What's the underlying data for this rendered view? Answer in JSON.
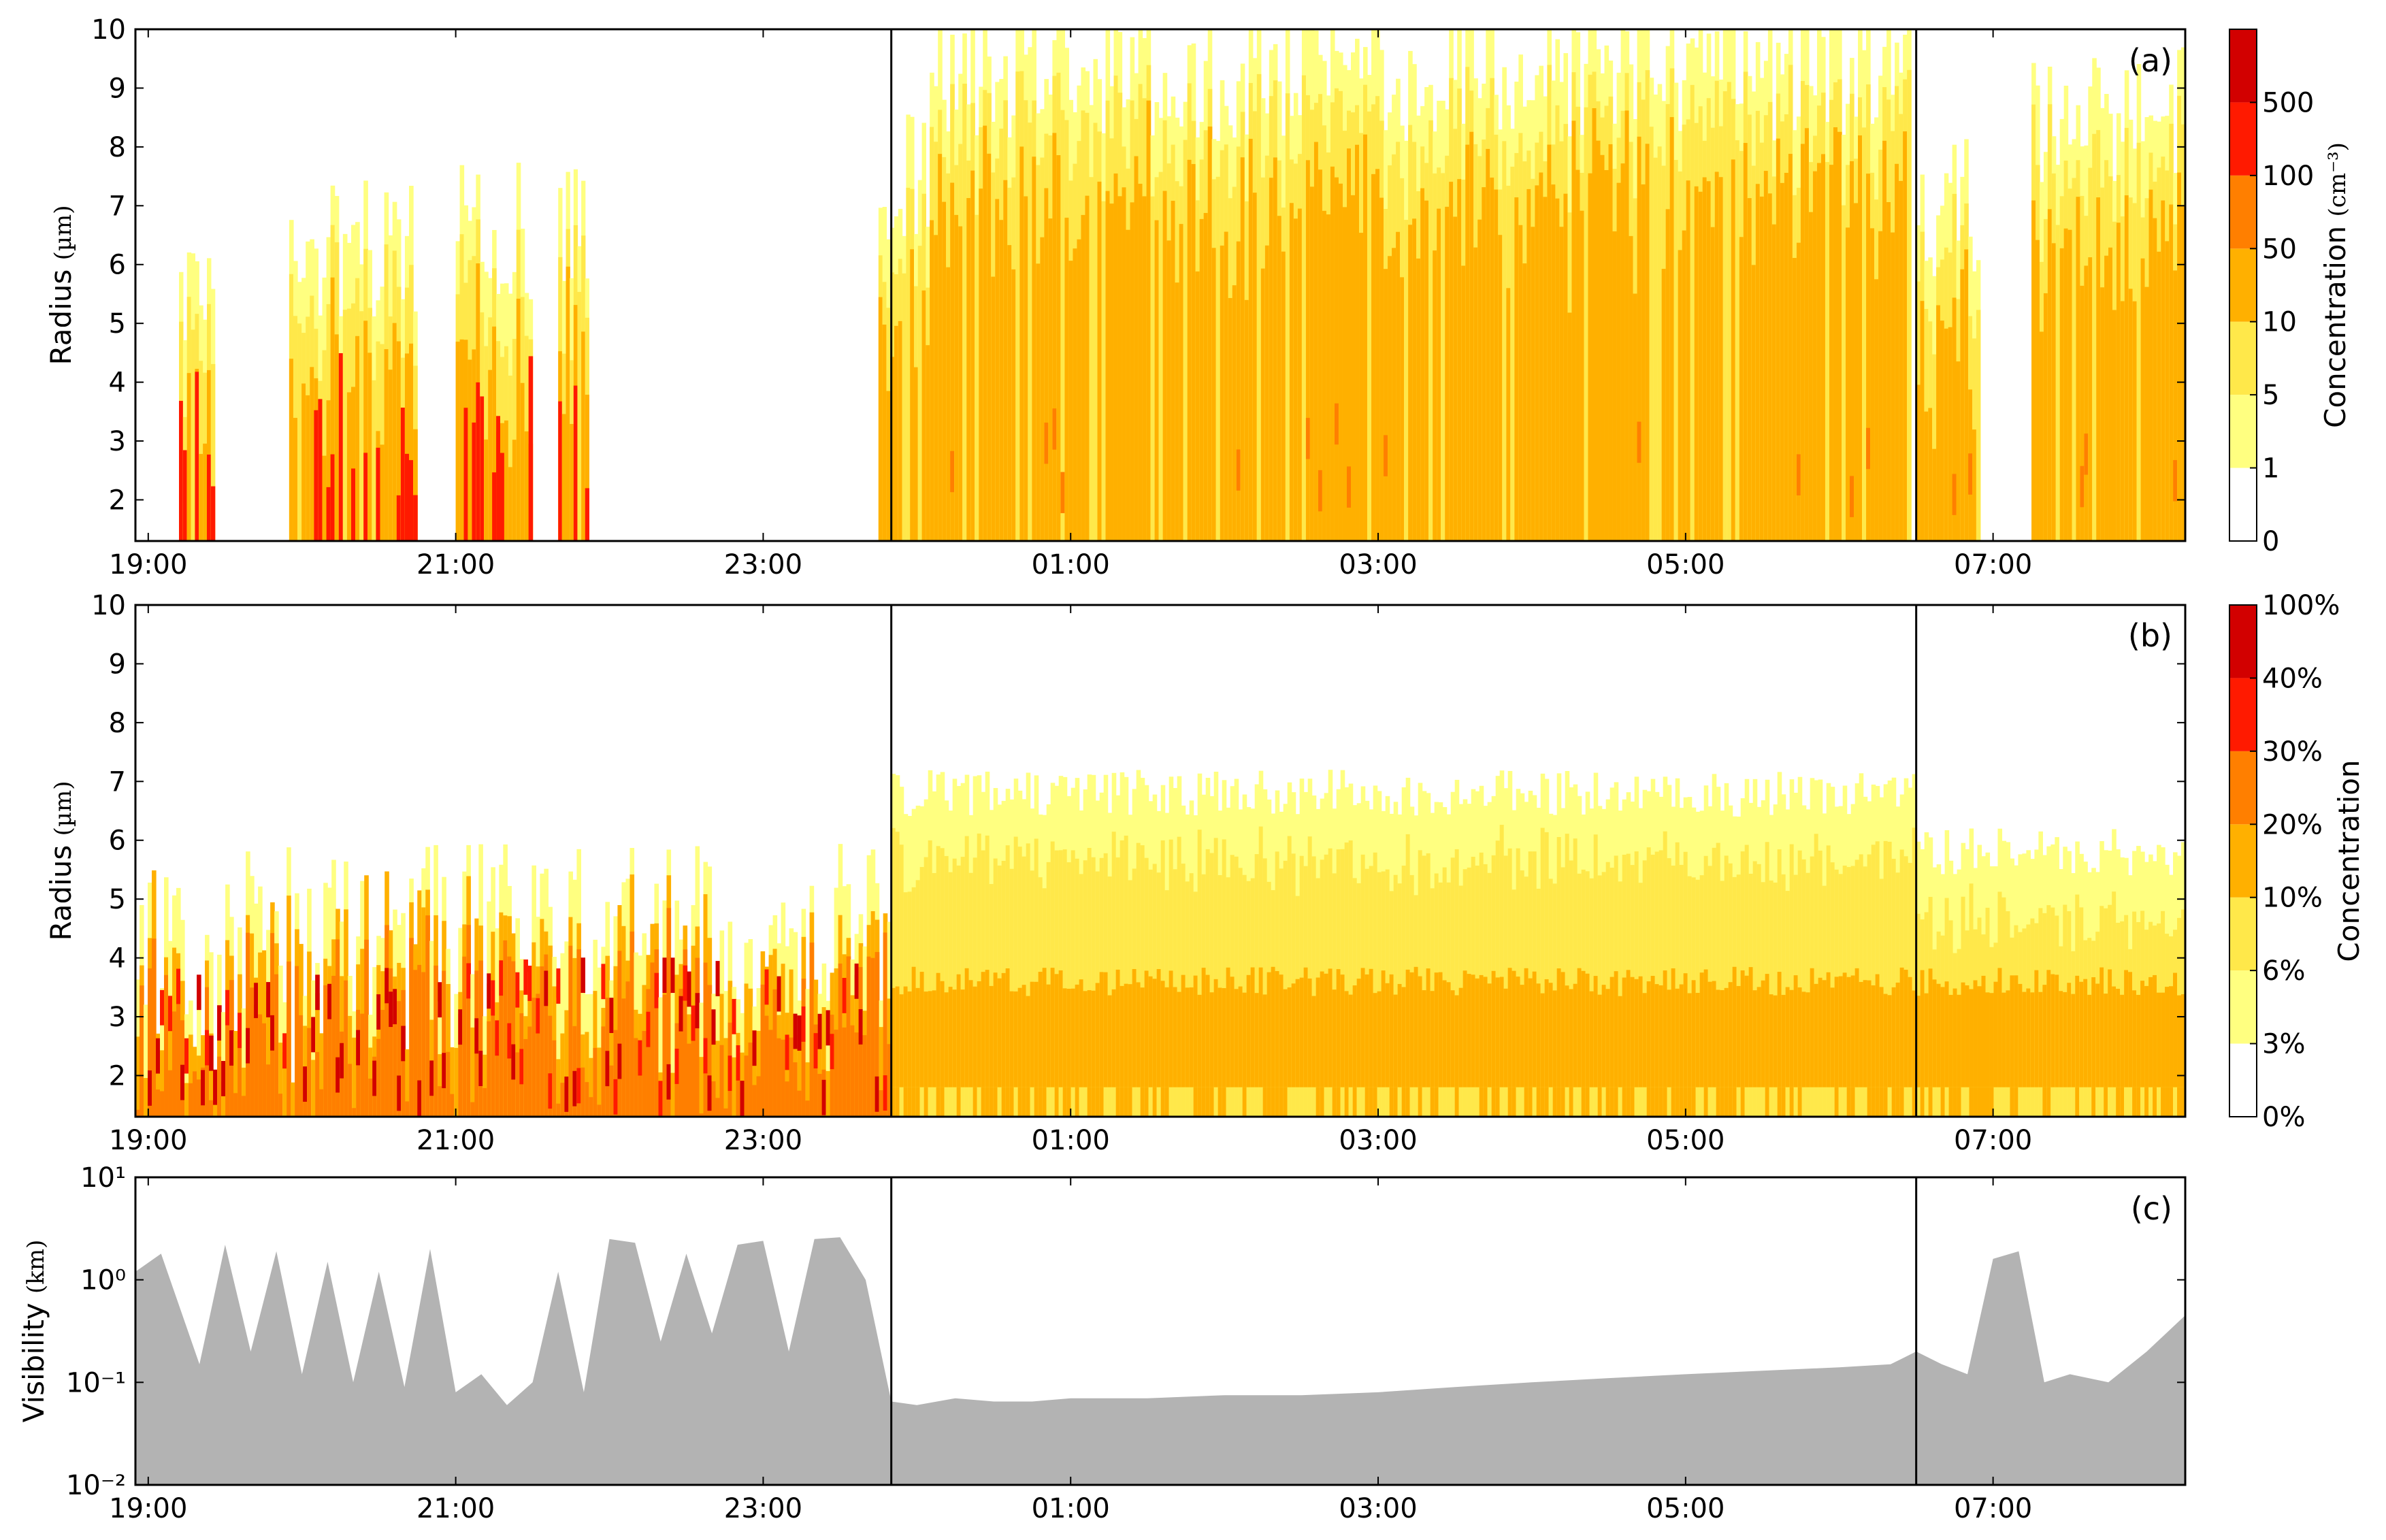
{
  "figure": {
    "vertical_markers": [
      "23:50",
      "06:30"
    ],
    "time_ticks": [
      "19:00",
      "21:00",
      "23:00",
      "01:00",
      "03:00",
      "05:00",
      "07:00"
    ]
  },
  "chart_data": [
    {
      "panel": "(a)",
      "type": "heatmap",
      "title": "",
      "xlabel": "",
      "ylabel": "Radius",
      "yunit": "(µm)",
      "x_range": [
        "18:55",
        "08:15"
      ],
      "ylim": [
        1.3,
        10
      ],
      "y_ticks": [
        "2",
        "3",
        "4",
        "5",
        "6",
        "7",
        "8",
        "9",
        "10"
      ],
      "colorbar": {
        "label": "Concentration",
        "unit": "(cm⁻³)",
        "tick_labels": [
          "0",
          "1",
          "5",
          "10",
          "50",
          "100",
          "500"
        ],
        "colors": [
          "#ffffff",
          "#ffff80",
          "#ffe84a",
          "#ffb000",
          "#ff7f00",
          "#ff1a00",
          "#d20000"
        ]
      },
      "events": [
        {
          "start": "19:12",
          "end": "19:26",
          "ymax": 5.5,
          "level": 2
        },
        {
          "start": "19:55",
          "end": "20:45",
          "ymax": 6.3,
          "level": 2
        },
        {
          "start": "21:00",
          "end": "21:30",
          "ymax": 6.6,
          "level": 3
        },
        {
          "start": "21:40",
          "end": "21:52",
          "ymax": 6.6,
          "level": 2
        },
        {
          "start": "23:45",
          "end": "00:05",
          "ymax": 7.5,
          "level": 1
        },
        {
          "start": "00:05",
          "end": "06:28",
          "ymax": 9.3,
          "level": 1
        },
        {
          "start": "06:30",
          "end": "06:55",
          "ymax": 7.0,
          "level": 1
        },
        {
          "start": "07:15",
          "end": "08:15",
          "ymax": 8.5,
          "level": 1
        }
      ]
    },
    {
      "panel": "(b)",
      "type": "heatmap",
      "title": "",
      "xlabel": "",
      "ylabel": "Radius",
      "yunit": "(µm)",
      "x_range": [
        "18:55",
        "08:15"
      ],
      "ylim": [
        1.3,
        10
      ],
      "y_ticks": [
        "2",
        "3",
        "4",
        "5",
        "6",
        "7",
        "8",
        "9",
        "10"
      ],
      "colorbar": {
        "label": "Concentration",
        "unit": "",
        "tick_labels": [
          "0%",
          "3%",
          "6%",
          "10%",
          "20%",
          "30%",
          "40%",
          "100%"
        ],
        "colors": [
          "#ffffff",
          "#ffff80",
          "#ffe84a",
          "#ffb000",
          "#ff7f00",
          "#ff1a00",
          "#d20000"
        ]
      },
      "regimes": [
        {
          "start": "18:55",
          "end": "23:50",
          "ymax": 4.5,
          "level": 3
        },
        {
          "start": "23:50",
          "end": "06:30",
          "ymax": 6.0,
          "level": 1
        },
        {
          "start": "06:30",
          "end": "08:15",
          "ymax": 5.0,
          "level": 1
        }
      ]
    },
    {
      "panel": "(c)",
      "type": "area",
      "title": "",
      "xlabel": "",
      "ylabel": "Visibility",
      "yunit": "(km)",
      "yscale": "log",
      "ylim": [
        0.01,
        10
      ],
      "y_ticks": [
        "10⁻²",
        "10⁻¹",
        "10⁰",
        "10¹"
      ],
      "fill_color": "#b3b3b3",
      "x": [
        "18:55",
        "19:05",
        "19:20",
        "19:30",
        "19:40",
        "19:50",
        "20:00",
        "20:10",
        "20:20",
        "20:30",
        "20:40",
        "20:50",
        "21:00",
        "21:10",
        "21:20",
        "21:30",
        "21:40",
        "21:50",
        "22:00",
        "22:10",
        "22:20",
        "22:30",
        "22:40",
        "22:50",
        "23:00",
        "23:10",
        "23:20",
        "23:30",
        "23:40",
        "23:50",
        "00:00",
        "00:15",
        "00:30",
        "00:45",
        "01:00",
        "01:30",
        "02:00",
        "02:30",
        "03:00",
        "03:30",
        "04:00",
        "04:30",
        "05:00",
        "05:30",
        "06:00",
        "06:20",
        "06:30",
        "06:40",
        "06:50",
        "07:00",
        "07:10",
        "07:20",
        "07:30",
        "07:45",
        "08:00",
        "08:15"
      ],
      "y": [
        1.2,
        1.8,
        0.15,
        2.2,
        0.2,
        1.9,
        0.12,
        1.5,
        0.1,
        1.2,
        0.09,
        2.0,
        0.08,
        0.12,
        0.06,
        0.1,
        1.2,
        0.08,
        2.5,
        2.3,
        0.25,
        1.8,
        0.3,
        2.2,
        2.4,
        0.2,
        2.5,
        2.6,
        1.0,
        0.065,
        0.06,
        0.07,
        0.065,
        0.065,
        0.07,
        0.07,
        0.075,
        0.075,
        0.08,
        0.09,
        0.1,
        0.11,
        0.12,
        0.13,
        0.14,
        0.15,
        0.2,
        0.15,
        0.12,
        1.6,
        1.9,
        0.1,
        0.12,
        0.1,
        0.2,
        0.45
      ]
    }
  ]
}
